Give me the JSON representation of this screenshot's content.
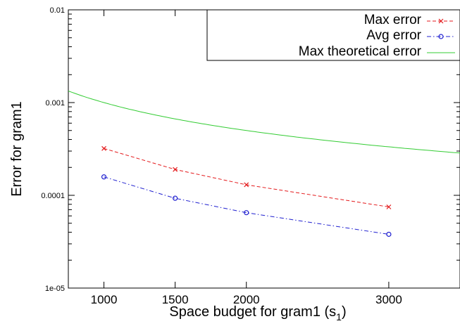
{
  "chart_data": {
    "type": "line",
    "xlabel": "Space budget for gram1 (s",
    "xlabel_subscript": "1",
    "xlabel_suffix": ")",
    "ylabel": "Error for gram1",
    "x_scale": "linear",
    "y_scale": "log",
    "xlim": [
      750,
      3500
    ],
    "ylim": [
      1e-05,
      0.01
    ],
    "x_ticks": [
      1000,
      1500,
      2000,
      3000
    ],
    "x_tick_labels": [
      "1000",
      "1500",
      "2000",
      "3000"
    ],
    "y_ticks": [
      1e-05,
      0.0001,
      0.001,
      0.01
    ],
    "y_tick_labels": [
      "1e-05",
      "0.0001",
      "0.001",
      "0.01"
    ],
    "grid": false,
    "legend_position": "top-right",
    "series": [
      {
        "name": "Max error",
        "style": "dashed",
        "marker": "x",
        "color": "#e41a1c",
        "x": [
          1000,
          1500,
          2000,
          3000
        ],
        "y": [
          0.00032,
          0.00019,
          0.00013,
          7.5e-05
        ]
      },
      {
        "name": "Avg error",
        "style": "dash-dot",
        "marker": "circle",
        "color": "#2020d0",
        "x": [
          1000,
          1500,
          2000,
          3000
        ],
        "y": [
          0.000158,
          9.3e-05,
          6.5e-05,
          3.8e-05
        ]
      },
      {
        "name": "Max theoretical error",
        "style": "solid",
        "marker": "none",
        "color": "#33cc33",
        "function": "1/x",
        "x_range": [
          750,
          3500
        ]
      }
    ]
  }
}
